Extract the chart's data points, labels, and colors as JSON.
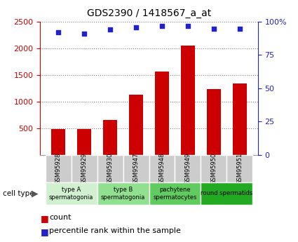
{
  "title": "GDS2390 / 1418567_a_at",
  "samples": [
    "GSM95928",
    "GSM95929",
    "GSM95930",
    "GSM95947",
    "GSM95948",
    "GSM95949",
    "GSM95950",
    "GSM95951"
  ],
  "counts": [
    480,
    490,
    650,
    1130,
    1560,
    2050,
    1230,
    1340
  ],
  "percentile_ranks": [
    92,
    91,
    94,
    96,
    97,
    97,
    95,
    95
  ],
  "ylim_left": [
    0,
    2500
  ],
  "ylim_right": [
    0,
    100
  ],
  "yticks_left": [
    500,
    1000,
    1500,
    2000,
    2500
  ],
  "yticks_right": [
    0,
    25,
    50,
    75,
    100
  ],
  "bar_color": "#cc0000",
  "scatter_color": "#2222cc",
  "group_labels": [
    "type A\nspermatogonia",
    "type B\nspermatogonia",
    "pachytene\nspermatocytes",
    "round spermatids"
  ],
  "group_starts": [
    0,
    2,
    4,
    6
  ],
  "group_ends": [
    2,
    4,
    6,
    8
  ],
  "group_colors": [
    "#d0f0d0",
    "#90e090",
    "#60cc60",
    "#22aa22"
  ],
  "cell_type_label": "cell type",
  "legend_count_label": "count",
  "legend_pct_label": "percentile rank within the sample",
  "left_axis_color": "#cc0000",
  "right_axis_color": "#2222cc",
  "background_color": "#ffffff",
  "sample_box_color": "#cccccc",
  "title_fontsize": 10,
  "axis_fontsize": 8,
  "legend_fontsize": 8
}
